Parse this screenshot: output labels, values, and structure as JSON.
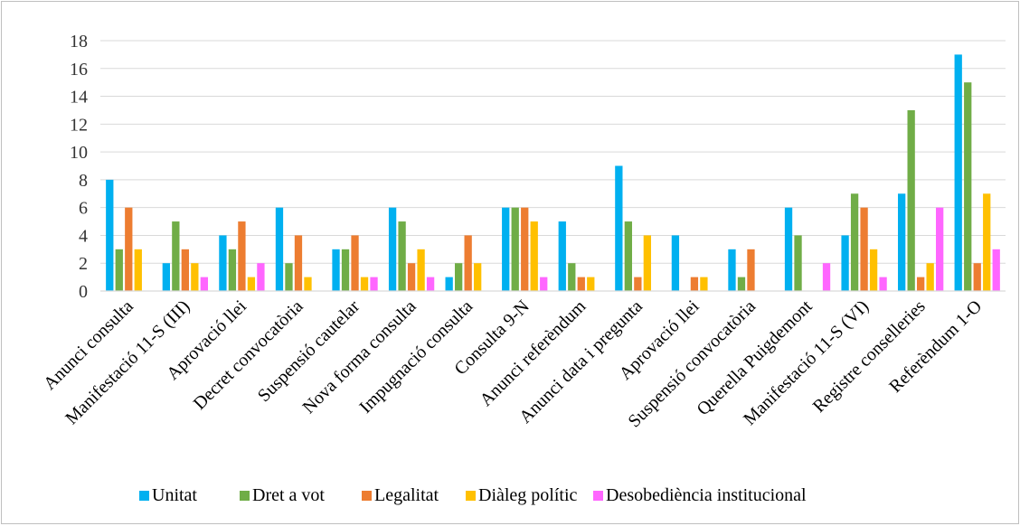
{
  "chart_data": {
    "type": "bar",
    "title": "",
    "xlabel": "",
    "ylabel": "",
    "ylim": [
      0,
      18
    ],
    "yticks": [
      0,
      2,
      4,
      6,
      8,
      10,
      12,
      14,
      16,
      18
    ],
    "grid": true,
    "legend_position": "bottom",
    "categories": [
      "Anunci consulta",
      "Manifestació 11-S (III)",
      "Aprovació llei",
      "Decret convocatòria",
      "Suspensió cautelar",
      "Nova forma consulta",
      "Impugnació consulta",
      "Consulta 9-N",
      "Anunci referèndum",
      "Anunci data i pregunta",
      "Aprovació llei",
      "Suspensió convocatòria",
      "Querella Puigdemont",
      "Manifestació 11-S (VI)",
      "Registre conselleries",
      "Referèndum 1-O"
    ],
    "series": [
      {
        "name": "Unitat",
        "color": "#00b0f0",
        "values": [
          8,
          2,
          4,
          6,
          3,
          6,
          1,
          6,
          5,
          9,
          4,
          3,
          6,
          4,
          7,
          17
        ]
      },
      {
        "name": "Dret a vot",
        "color": "#70ad47",
        "values": [
          3,
          5,
          3,
          2,
          3,
          5,
          2,
          6,
          2,
          5,
          0,
          1,
          4,
          7,
          13,
          15
        ]
      },
      {
        "name": "Legalitat",
        "color": "#ed7d31",
        "values": [
          6,
          3,
          5,
          4,
          4,
          2,
          4,
          6,
          1,
          1,
          1,
          3,
          0,
          6,
          1,
          2
        ]
      },
      {
        "name": "Diàleg polític",
        "color": "#ffc000",
        "values": [
          3,
          2,
          1,
          1,
          1,
          3,
          2,
          5,
          1,
          4,
          1,
          0,
          0,
          3,
          2,
          7
        ]
      },
      {
        "name": "Desobediència institucional",
        "color": "#ff66ff",
        "values": [
          0,
          1,
          2,
          0,
          1,
          1,
          0,
          1,
          0,
          0,
          0,
          0,
          2,
          1,
          6,
          3
        ]
      }
    ]
  }
}
